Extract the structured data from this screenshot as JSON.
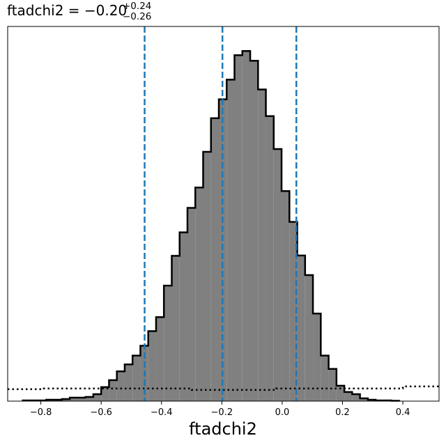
{
  "chart_data": {
    "type": "histogram",
    "title": {
      "text": "ftadchi2 = −0.20",
      "superscript": "+0.24",
      "subscript": "−0.26"
    },
    "xlabel": "ftadchi2",
    "ylabel": "",
    "xlim": [
      -0.91,
      0.52
    ],
    "ylim": [
      0,
      1.07
    ],
    "x_ticks": [
      -0.8,
      -0.6,
      -0.4,
      -0.2,
      0.0,
      0.2,
      0.4
    ],
    "x_tick_labels": [
      "−0.8",
      "−0.6",
      "−0.4",
      "−0.2",
      "0.0",
      "0.2",
      "0.4"
    ],
    "y_ticks_visible": false,
    "grid": false,
    "legend": "none",
    "bin_width": 0.026,
    "histogram_bins": [
      {
        "x0": -0.86,
        "y": 0.002
      },
      {
        "x0": -0.834,
        "y": 0.002
      },
      {
        "x0": -0.808,
        "y": 0.002
      },
      {
        "x0": -0.782,
        "y": 0.004
      },
      {
        "x0": -0.756,
        "y": 0.004
      },
      {
        "x0": -0.73,
        "y": 0.006
      },
      {
        "x0": -0.704,
        "y": 0.01
      },
      {
        "x0": -0.678,
        "y": 0.01
      },
      {
        "x0": -0.652,
        "y": 0.012
      },
      {
        "x0": -0.626,
        "y": 0.02
      },
      {
        "x0": -0.6,
        "y": 0.04
      },
      {
        "x0": -0.574,
        "y": 0.06
      },
      {
        "x0": -0.548,
        "y": 0.085
      },
      {
        "x0": -0.522,
        "y": 0.105
      },
      {
        "x0": -0.496,
        "y": 0.13
      },
      {
        "x0": -0.47,
        "y": 0.158
      },
      {
        "x0": -0.444,
        "y": 0.2
      },
      {
        "x0": -0.418,
        "y": 0.24
      },
      {
        "x0": -0.392,
        "y": 0.33
      },
      {
        "x0": -0.366,
        "y": 0.415
      },
      {
        "x0": -0.34,
        "y": 0.482
      },
      {
        "x0": -0.314,
        "y": 0.552
      },
      {
        "x0": -0.288,
        "y": 0.61
      },
      {
        "x0": -0.262,
        "y": 0.712
      },
      {
        "x0": -0.236,
        "y": 0.808
      },
      {
        "x0": -0.21,
        "y": 0.862
      },
      {
        "x0": -0.184,
        "y": 0.918
      },
      {
        "x0": -0.158,
        "y": 0.988
      },
      {
        "x0": -0.132,
        "y": 1.0
      },
      {
        "x0": -0.106,
        "y": 0.972
      },
      {
        "x0": -0.08,
        "y": 0.89
      },
      {
        "x0": -0.054,
        "y": 0.814
      },
      {
        "x0": -0.028,
        "y": 0.72
      },
      {
        "x0": -0.002,
        "y": 0.6
      },
      {
        "x0": 0.024,
        "y": 0.512
      },
      {
        "x0": 0.05,
        "y": 0.416
      },
      {
        "x0": 0.076,
        "y": 0.36
      },
      {
        "x0": 0.102,
        "y": 0.25
      },
      {
        "x0": 0.128,
        "y": 0.13
      },
      {
        "x0": 0.154,
        "y": 0.092
      },
      {
        "x0": 0.18,
        "y": 0.044
      },
      {
        "x0": 0.206,
        "y": 0.026
      },
      {
        "x0": 0.232,
        "y": 0.02
      },
      {
        "x0": 0.258,
        "y": 0.008
      },
      {
        "x0": 0.284,
        "y": 0.004
      },
      {
        "x0": 0.31,
        "y": 0.002
      },
      {
        "x0": 0.336,
        "y": 0.002
      },
      {
        "x0": 0.362,
        "y": 0.001
      }
    ],
    "prior_line": {
      "style": "dotted",
      "points": [
        {
          "x": -0.91,
          "y": 0.034
        },
        {
          "x": -0.79,
          "y": 0.034
        },
        {
          "x": -0.79,
          "y": 0.036
        },
        {
          "x": -0.3,
          "y": 0.036
        },
        {
          "x": -0.3,
          "y": 0.032
        },
        {
          "x": -0.02,
          "y": 0.032
        },
        {
          "x": -0.02,
          "y": 0.036
        },
        {
          "x": 0.4,
          "y": 0.036
        },
        {
          "x": 0.4,
          "y": 0.042
        },
        {
          "x": 0.52,
          "y": 0.042
        }
      ]
    },
    "quantile_lines": [
      -0.456,
      -0.198,
      0.047
    ],
    "colors": {
      "fill": "#808080",
      "edge": "#000000",
      "quantile": "#1f77b4",
      "prior": "#000000"
    }
  }
}
